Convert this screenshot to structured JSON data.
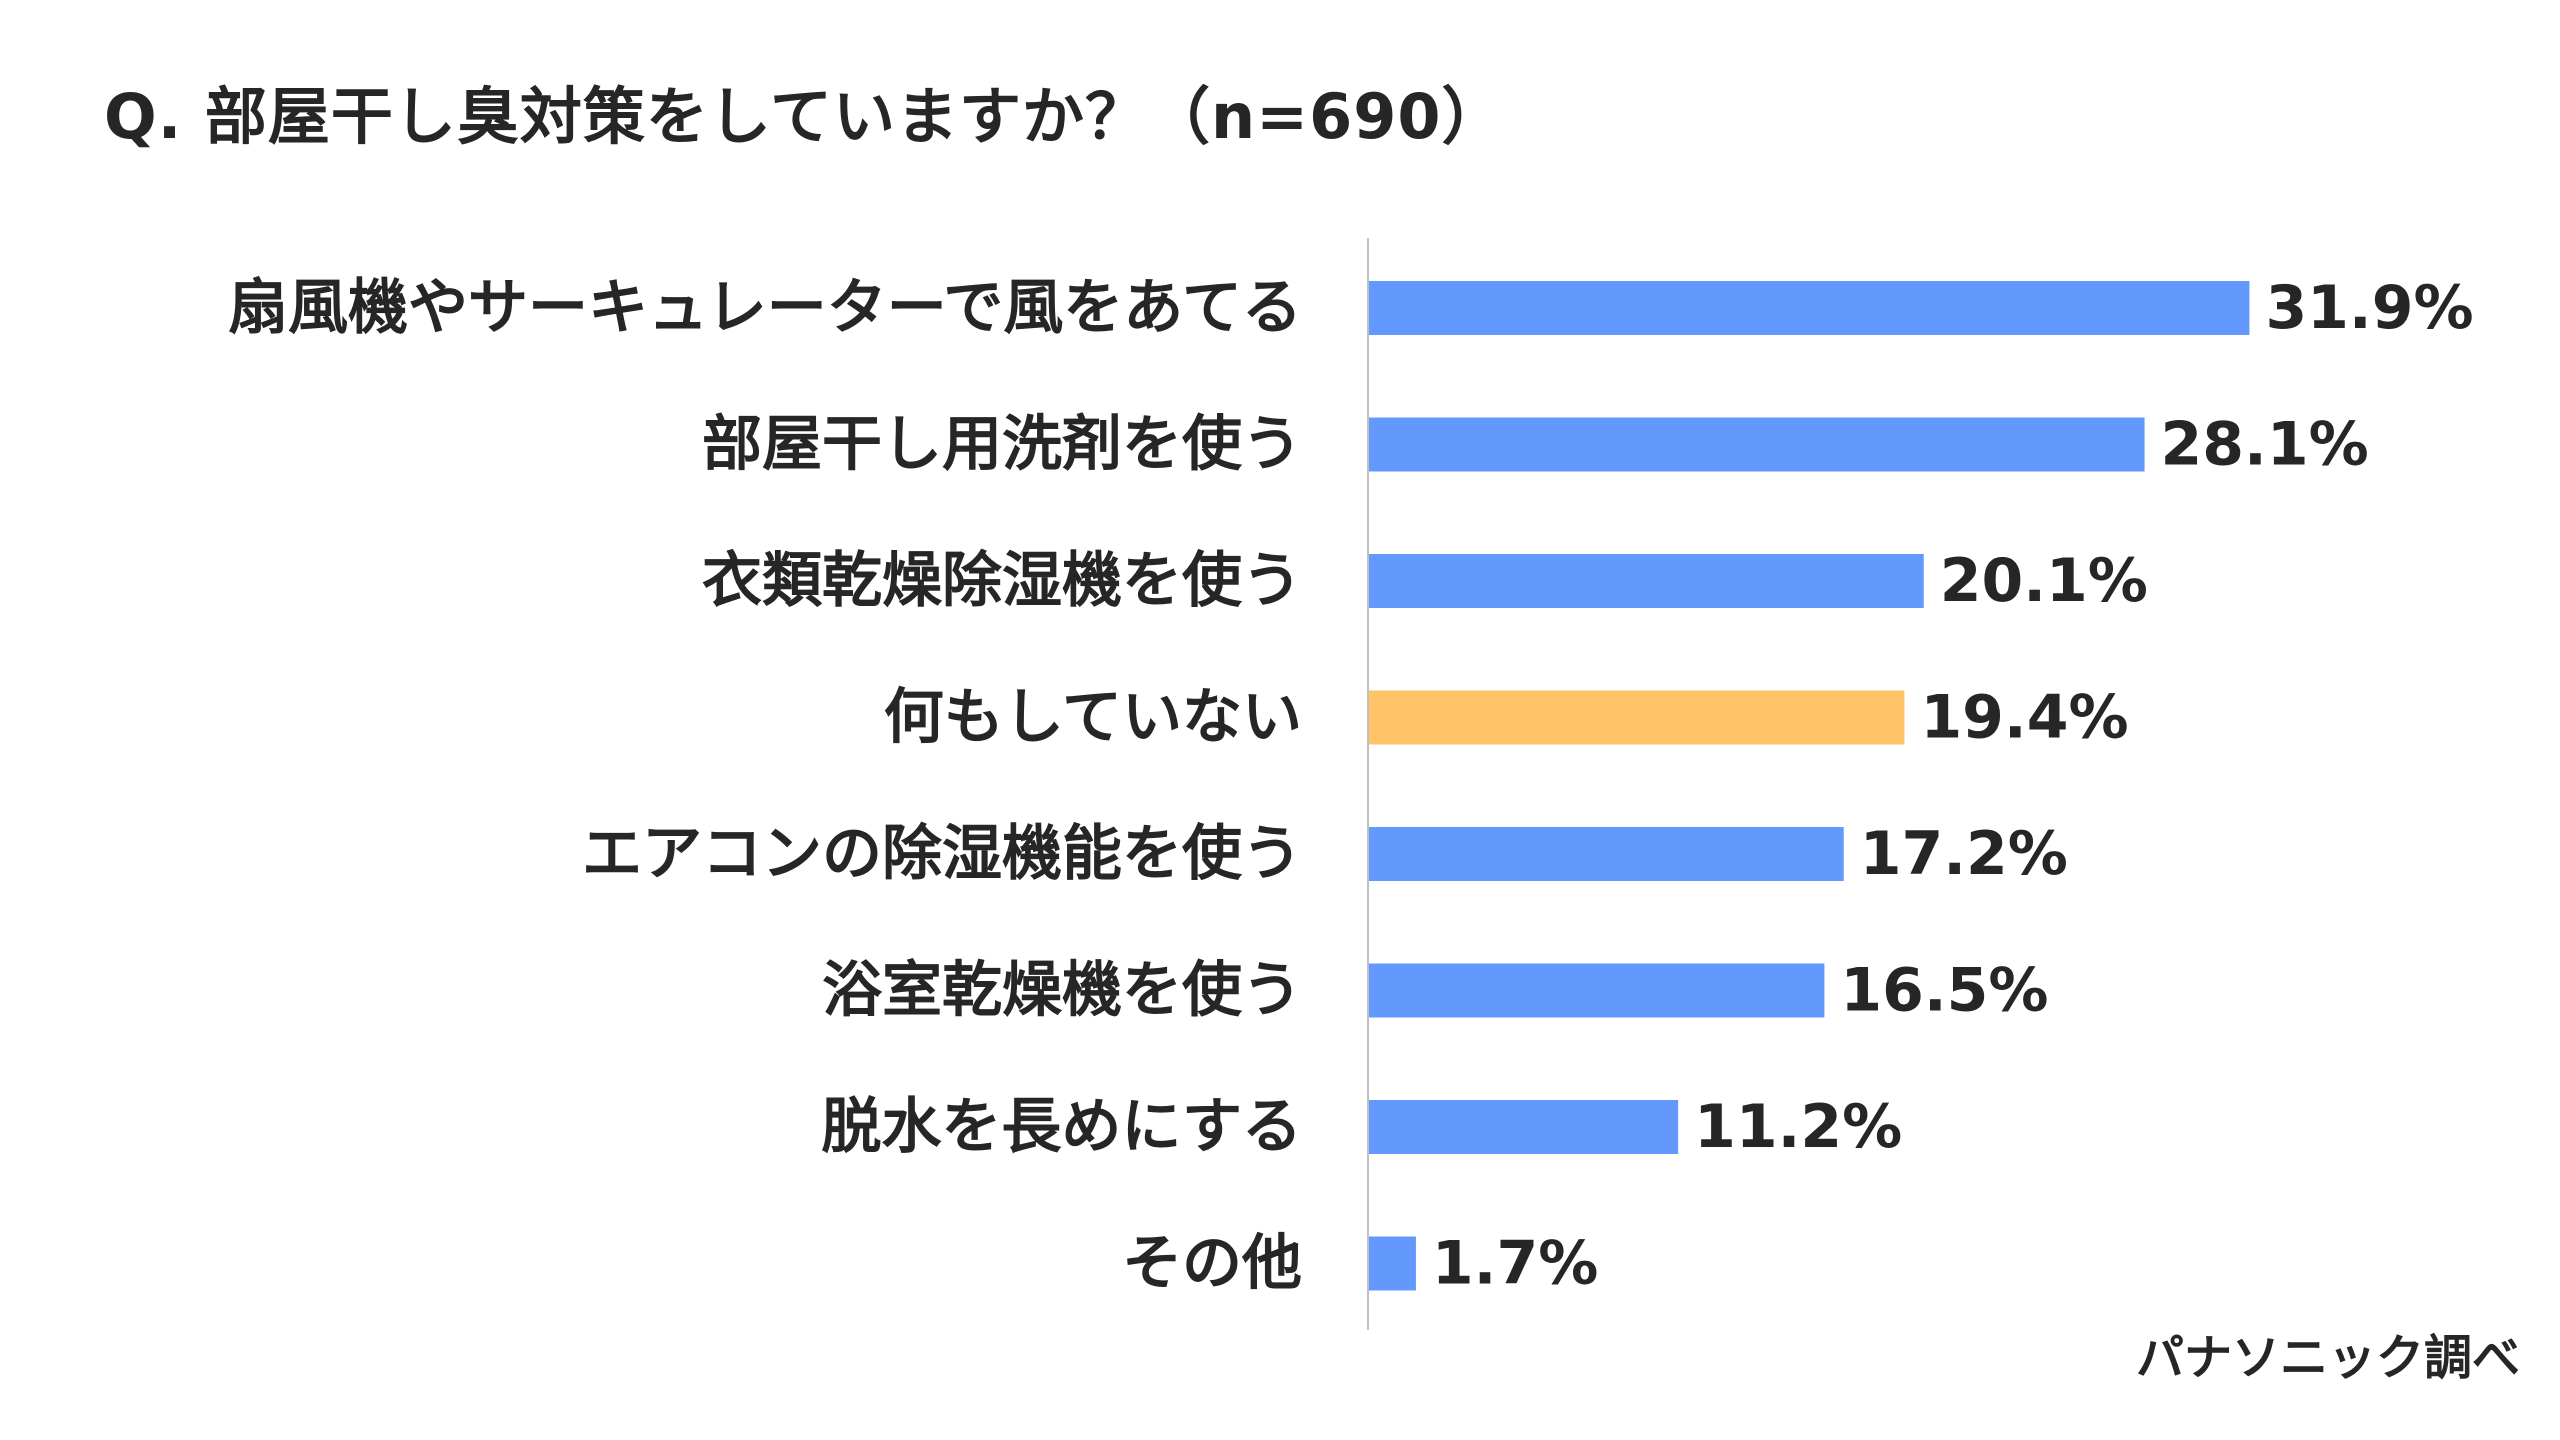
{
  "title": "Q. 部屋干し臭対策をしていますか？（n=690）",
  "source": "パナソニック調べ",
  "colors": {
    "default_bar": "#6399FC",
    "highlight_bar": "#FEC467",
    "axis": "#BFBFBF",
    "text": "#262626"
  },
  "chart_data": {
    "type": "bar",
    "orientation": "horizontal",
    "title": "Q. 部屋干し臭対策をしていますか？（n=690）",
    "categories": [
      "扇風機やサーキュレーターで風をあてる",
      "部屋干し用洗剤を使う",
      "衣類乾燥除湿機を使う",
      "何もしていない",
      "エアコンの除湿機能を使う",
      "浴室乾燥機を使う",
      "脱水を長めにする",
      "その他"
    ],
    "values": [
      31.9,
      28.1,
      20.1,
      19.4,
      17.2,
      16.5,
      11.2,
      1.7
    ],
    "value_labels": [
      "31.9%",
      "28.1%",
      "20.1%",
      "19.4%",
      "17.2%",
      "16.5%",
      "11.2%",
      "1.7%"
    ],
    "highlight_index": 3,
    "xlim": [
      0,
      40
    ],
    "unit": "%",
    "grid": false,
    "legend": "none"
  }
}
